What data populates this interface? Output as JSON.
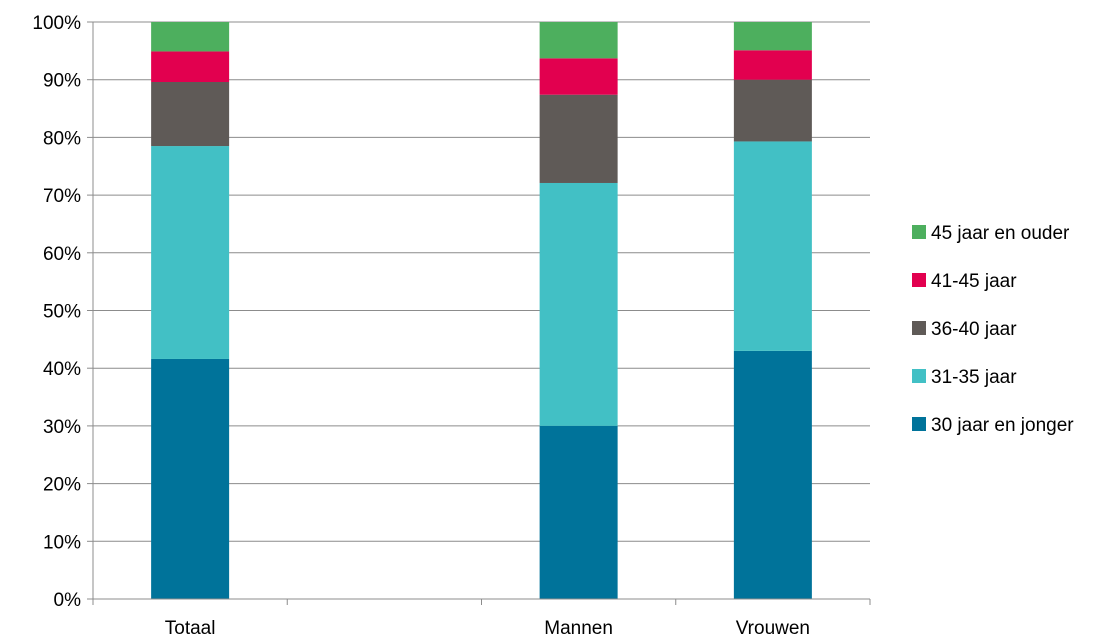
{
  "chart_data": {
    "type": "bar",
    "stacked": true,
    "percent_stacked": true,
    "categories": [
      "Totaal",
      "",
      "Mannen",
      "Vrouwen"
    ],
    "series": [
      {
        "name": "30 jaar en jonger",
        "color": "#00739a",
        "values": [
          41.6,
          null,
          30.0,
          43.0
        ]
      },
      {
        "name": "31-35 jaar",
        "color": "#42c0c5",
        "values": [
          36.9,
          null,
          42.1,
          36.3
        ]
      },
      {
        "name": "36-40 jaar",
        "color": "#5f5a57",
        "values": [
          11.1,
          null,
          15.3,
          10.7
        ]
      },
      {
        "name": "41-45 jaar",
        "color": "#e2004f",
        "values": [
          5.3,
          null,
          6.3,
          5.1
        ]
      },
      {
        "name": "45 jaar en ouder",
        "color": "#4daf5e",
        "values": [
          5.1,
          null,
          6.3,
          4.9
        ]
      }
    ],
    "y_ticks": [
      "0%",
      "10%",
      "20%",
      "30%",
      "40%",
      "50%",
      "60%",
      "70%",
      "80%",
      "90%",
      "100%"
    ],
    "ylim": [
      0,
      100
    ],
    "grid": true,
    "legend_position": "right",
    "legend_order": [
      "45 jaar en ouder",
      "41-45 jaar",
      "36-40 jaar",
      "31-35 jaar",
      "30 jaar en jonger"
    ],
    "gridline_color": "#8c8c8c"
  }
}
